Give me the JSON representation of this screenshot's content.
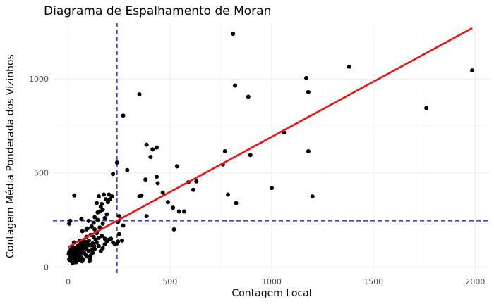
{
  "chart_data": {
    "type": "scatter",
    "title": "Diagrama de Espalhamento de Moran",
    "xlabel": "Contagem Local",
    "ylabel": "Contagem Média Ponderada dos Vizinhos",
    "xlim": [
      -75,
      2075
    ],
    "ylim": [
      -40,
      1300
    ],
    "x_ticks": [
      0,
      500,
      1000,
      1500,
      2000
    ],
    "y_ticks": [
      0,
      500,
      1000
    ],
    "grid": true,
    "point_color": "#000000",
    "regression_line": {
      "x": [
        0,
        1985
      ],
      "y": [
        105,
        1270
      ],
      "color": "#ee1111"
    },
    "reference_lines": {
      "x_mean": 240,
      "y_mean": 245,
      "color": "#1a1aff",
      "style": "dashed"
    },
    "points": [
      [
        810,
        1240
      ],
      [
        820,
        965
      ],
      [
        885,
        905
      ],
      [
        1170,
        1005
      ],
      [
        1180,
        930
      ],
      [
        1380,
        1065
      ],
      [
        1985,
        1045
      ],
      [
        1760,
        845
      ],
      [
        350,
        918
      ],
      [
        270,
        805
      ],
      [
        1060,
        715
      ],
      [
        770,
        615
      ],
      [
        895,
        595
      ],
      [
        1180,
        615
      ],
      [
        1000,
        420
      ],
      [
        1200,
        375
      ],
      [
        825,
        340
      ],
      [
        785,
        385
      ],
      [
        760,
        545
      ],
      [
        630,
        455
      ],
      [
        590,
        450
      ],
      [
        615,
        410
      ],
      [
        535,
        535
      ],
      [
        515,
        315
      ],
      [
        545,
        295
      ],
      [
        570,
        295
      ],
      [
        490,
        345
      ],
      [
        520,
        200
      ],
      [
        465,
        395
      ],
      [
        440,
        445
      ],
      [
        435,
        480
      ],
      [
        435,
        635
      ],
      [
        385,
        650
      ],
      [
        415,
        625
      ],
      [
        405,
        585
      ],
      [
        380,
        465
      ],
      [
        360,
        380
      ],
      [
        350,
        375
      ],
      [
        385,
        270
      ],
      [
        290,
        515
      ],
      [
        240,
        555
      ],
      [
        220,
        495
      ],
      [
        200,
        385
      ],
      [
        215,
        375
      ],
      [
        175,
        385
      ],
      [
        150,
        375
      ],
      [
        165,
        335
      ],
      [
        140,
        340
      ],
      [
        130,
        265
      ],
      [
        100,
        245
      ],
      [
        90,
        200
      ],
      [
        70,
        190
      ],
      [
        65,
        255
      ],
      [
        30,
        380
      ],
      [
        10,
        245
      ],
      [
        5,
        230
      ],
      [
        250,
        270
      ],
      [
        245,
        240
      ],
      [
        270,
        220
      ],
      [
        265,
        140
      ],
      [
        250,
        175
      ],
      [
        245,
        135
      ],
      [
        240,
        125
      ],
      [
        230,
        120
      ],
      [
        220,
        130
      ],
      [
        210,
        150
      ],
      [
        200,
        145
      ],
      [
        190,
        135
      ],
      [
        180,
        120
      ],
      [
        170,
        100
      ],
      [
        160,
        85
      ],
      [
        150,
        110
      ],
      [
        140,
        130
      ],
      [
        130,
        95
      ],
      [
        120,
        75
      ],
      [
        110,
        60
      ],
      [
        100,
        85
      ],
      [
        90,
        110
      ],
      [
        80,
        130
      ],
      [
        70,
        95
      ],
      [
        60,
        70
      ],
      [
        50,
        55
      ],
      [
        40,
        80
      ],
      [
        30,
        100
      ],
      [
        20,
        85
      ],
      [
        10,
        65
      ],
      [
        5,
        40
      ],
      [
        15,
        30
      ],
      [
        25,
        45
      ],
      [
        35,
        60
      ],
      [
        45,
        75
      ],
      [
        55,
        35
      ],
      [
        65,
        50
      ],
      [
        75,
        40
      ],
      [
        85,
        65
      ],
      [
        95,
        55
      ],
      [
        105,
        30
      ],
      [
        120,
        125
      ],
      [
        135,
        145
      ],
      [
        150,
        155
      ],
      [
        165,
        165
      ],
      [
        180,
        150
      ],
      [
        195,
        345
      ],
      [
        205,
        360
      ],
      [
        185,
        360
      ],
      [
        170,
        305
      ],
      [
        155,
        295
      ],
      [
        145,
        250
      ],
      [
        125,
        235
      ],
      [
        115,
        215
      ],
      [
        95,
        205
      ],
      [
        80,
        115
      ],
      [
        60,
        120
      ],
      [
        45,
        110
      ],
      [
        35,
        95
      ],
      [
        25,
        75
      ],
      [
        15,
        60
      ],
      [
        8,
        50
      ],
      [
        3,
        70
      ],
      [
        12,
        90
      ],
      [
        22,
        20
      ],
      [
        32,
        35
      ],
      [
        42,
        45
      ],
      [
        52,
        60
      ],
      [
        62,
        80
      ],
      [
        72,
        105
      ],
      [
        82,
        135
      ],
      [
        92,
        125
      ],
      [
        102,
        140
      ],
      [
        112,
        115
      ],
      [
        125,
        160
      ],
      [
        140,
        180
      ],
      [
        155,
        210
      ],
      [
        170,
        230
      ],
      [
        180,
        260
      ],
      [
        190,
        280
      ],
      [
        160,
        320
      ],
      [
        145,
        290
      ],
      [
        130,
        200
      ],
      [
        110,
        170
      ],
      [
        90,
        160
      ],
      [
        70,
        130
      ],
      [
        55,
        100
      ],
      [
        40,
        70
      ],
      [
        30,
        55
      ],
      [
        20,
        45
      ],
      [
        10,
        35
      ],
      [
        5,
        80
      ],
      [
        18,
        110
      ],
      [
        28,
        130
      ],
      [
        38,
        25
      ],
      [
        48,
        90
      ],
      [
        58,
        140
      ],
      [
        68,
        30
      ],
      [
        78,
        75
      ],
      [
        88,
        95
      ],
      [
        98,
        115
      ],
      [
        108,
        45
      ],
      [
        118,
        90
      ],
      [
        128,
        110
      ]
    ]
  }
}
